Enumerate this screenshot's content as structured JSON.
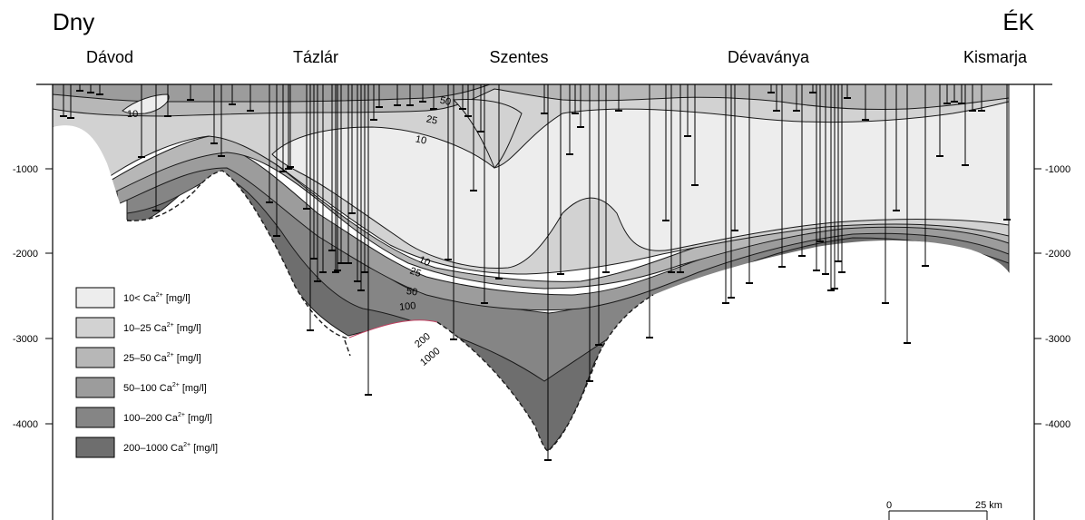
{
  "direction_labels": {
    "left": "Dny",
    "right": "ÉK"
  },
  "locations": [
    "Dávod",
    "Tázlár",
    "Szentes",
    "Dévaványa",
    "Kismarja"
  ],
  "depth_axis": {
    "ticks": [
      "-1000",
      "-2000",
      "-3000",
      "-4000"
    ],
    "values": [
      -1000,
      -2000,
      -3000,
      -4000
    ]
  },
  "isolines": {
    "c10a": "10",
    "c25a": "25",
    "c10b": "10",
    "c50a": "50",
    "c10c": "10",
    "c25b": "25",
    "c50b": "50",
    "c100": "100",
    "c200": "200",
    "c1000": "1000"
  },
  "legend": [
    {
      "prefix": "10< Ca",
      "ion": "2+",
      "unit": "[mg/l]",
      "color": "#ededed"
    },
    {
      "prefix": "10–25 Ca",
      "ion": "2+",
      "unit": "[mg/l]",
      "color": "#d2d2d2"
    },
    {
      "prefix": "25–50 Ca",
      "ion": "2+",
      "unit": "[mg/l]",
      "color": "#b7b7b7"
    },
    {
      "prefix": "50–100 Ca",
      "ion": "2+",
      "unit": "[mg/l]",
      "color": "#9c9c9c"
    },
    {
      "prefix": "100–200 Ca",
      "ion": "2+",
      "unit": "[mg/l]",
      "color": "#858585"
    },
    {
      "prefix": "200–1000 Ca",
      "ion": "2+",
      "unit": "[mg/l]",
      "color": "#6e6e6e"
    }
  ],
  "scale_bar": {
    "start": "0",
    "end": "25 km"
  }
}
